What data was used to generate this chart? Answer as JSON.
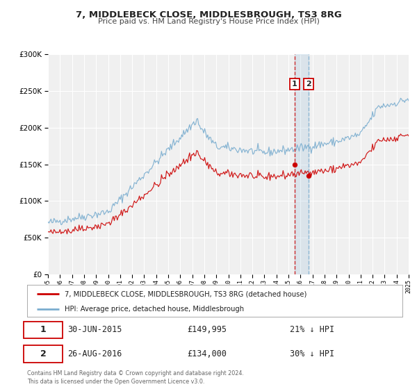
{
  "title": "7, MIDDLEBECK CLOSE, MIDDLESBROUGH, TS3 8RG",
  "subtitle": "Price paid vs. HM Land Registry's House Price Index (HPI)",
  "legend_line1": "7, MIDDLEBECK CLOSE, MIDDLESBROUGH, TS3 8RG (detached house)",
  "legend_line2": "HPI: Average price, detached house, Middlesbrough",
  "annotation1_date": "30-JUN-2015",
  "annotation1_price": "£149,995",
  "annotation1_hpi": "21% ↓ HPI",
  "annotation2_date": "26-AUG-2016",
  "annotation2_price": "£134,000",
  "annotation2_hpi": "30% ↓ HPI",
  "footer1": "Contains HM Land Registry data © Crown copyright and database right 2024.",
  "footer2": "This data is licensed under the Open Government Licence v3.0.",
  "red_color": "#cc0000",
  "blue_color": "#7aadcf",
  "bg_color": "#ffffff",
  "plot_bg_color": "#f0f0f0",
  "grid_color": "#ffffff",
  "sale1_date_num": 2015.5,
  "sale1_price": 149995,
  "sale2_date_num": 2016.66,
  "sale2_price": 134000,
  "xmin": 1995,
  "xmax": 2025,
  "ymin": 0,
  "ymax": 300000
}
